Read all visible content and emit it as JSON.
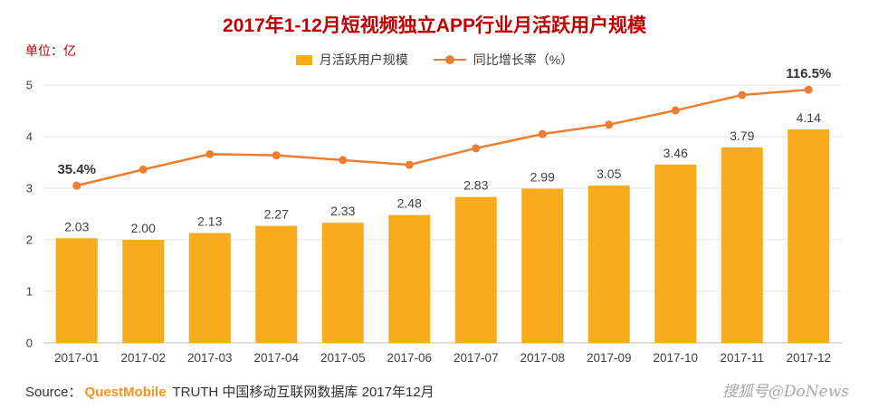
{
  "title": "2017年1-12月短视频独立APP行业月活跃用户规模",
  "unit_label": "单位：亿",
  "legend": [
    {
      "label": "月活跃用户规模",
      "type": "bar",
      "color": "#F9AB1E"
    },
    {
      "label": "同比增长率（%）",
      "type": "line",
      "color": "#ED7D31"
    }
  ],
  "chart_data": {
    "type": "bar",
    "combo": "bar+line",
    "title": "2017年1-12月短视频独立APP行业月活跃用户规模",
    "unit": "亿",
    "categories": [
      "2017-01",
      "2017-02",
      "2017-03",
      "2017-04",
      "2017-05",
      "2017-06",
      "2017-07",
      "2017-08",
      "2017-09",
      "2017-10",
      "2017-11",
      "2017-12"
    ],
    "series": [
      {
        "name": "月活跃用户规模",
        "type": "bar",
        "axis": "left",
        "color": "#F9AB1E",
        "values": [
          2.03,
          2.0,
          2.13,
          2.27,
          2.33,
          2.48,
          2.83,
          2.99,
          3.05,
          3.46,
          3.79,
          4.14
        ],
        "data_labels": [
          "2.03",
          "2.00",
          "2.13",
          "2.27",
          "2.33",
          "2.48",
          "2.83",
          "2.99",
          "3.05",
          "3.46",
          "3.79",
          "4.14"
        ]
      },
      {
        "name": "同比增长率（%）",
        "type": "line",
        "axis": "right-hidden",
        "color": "#ED7D31",
        "values_percent": [
          35.4,
          49,
          62,
          61,
          57,
          53,
          67,
          79,
          87,
          99,
          112,
          116.5
        ],
        "labeled_points": [
          {
            "index": 0,
            "label": "35.4%"
          },
          {
            "index": 11,
            "label": "116.5%"
          }
        ]
      }
    ],
    "left_axis": {
      "min": 0,
      "max": 5,
      "ticks": [
        0,
        1,
        2,
        3,
        4,
        5
      ]
    },
    "hidden_right_axis_mapping": {
      "pct_a": 35.4,
      "unit_a": 3.05,
      "pct_b": 116.5,
      "unit_b": 4.91
    },
    "grid": true,
    "legend_position": "top-center"
  },
  "footer": {
    "source_prefix": "Source：",
    "source_brand": "QuestMobile",
    "source_rest": " TRUTH 中国移动互联网数据库 2017年12月",
    "watermark": "搜狐号@DoNews"
  },
  "colors": {
    "title": "#C00000",
    "bar": "#F9AB1E",
    "line": "#ED7D31",
    "grid": "#E3E3E3",
    "axis_line": "#BFBFBF",
    "axis_text": "#404040",
    "label_text": "#404040",
    "callout_text": "#333333"
  }
}
